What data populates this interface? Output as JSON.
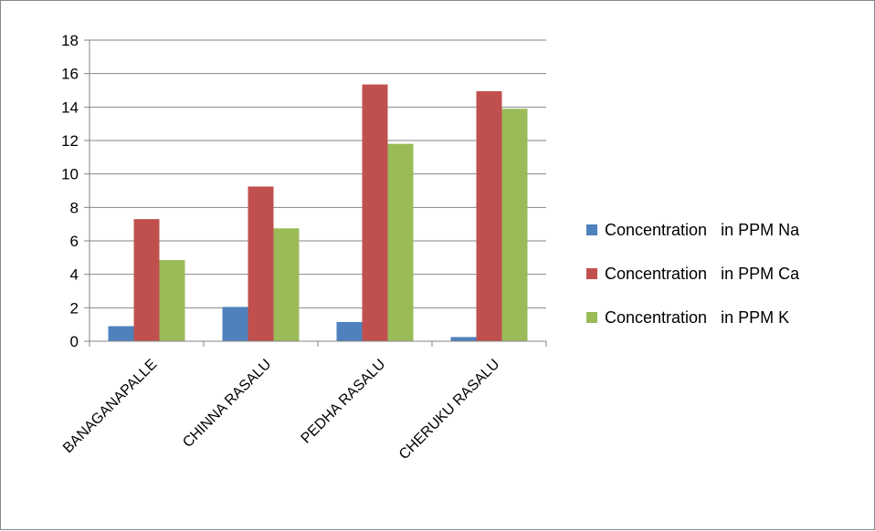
{
  "chart_data": {
    "type": "bar",
    "categories": [
      "BANAGANAPALLE",
      "CHINNA RASALU",
      "PEDHA RASALU",
      "CHERUKU RASALU"
    ],
    "series": [
      {
        "name": "Concentration   in PPM Na",
        "color": "#4F81BD",
        "values": [
          0.9,
          2.05,
          1.15,
          0.25
        ]
      },
      {
        "name": "Concentration   in PPM Ca",
        "color": "#C0504D",
        "values": [
          7.3,
          9.25,
          15.35,
          14.95
        ]
      },
      {
        "name": "Concentration   in PPM K",
        "color": "#9BBB59",
        "values": [
          4.85,
          6.75,
          11.8,
          13.9
        ]
      }
    ],
    "yticks": [
      "0",
      "2",
      "4",
      "6",
      "8",
      "10",
      "12",
      "14",
      "16",
      "18"
    ],
    "ylim": [
      0,
      18
    ],
    "grid": true,
    "legend_position": "right"
  }
}
